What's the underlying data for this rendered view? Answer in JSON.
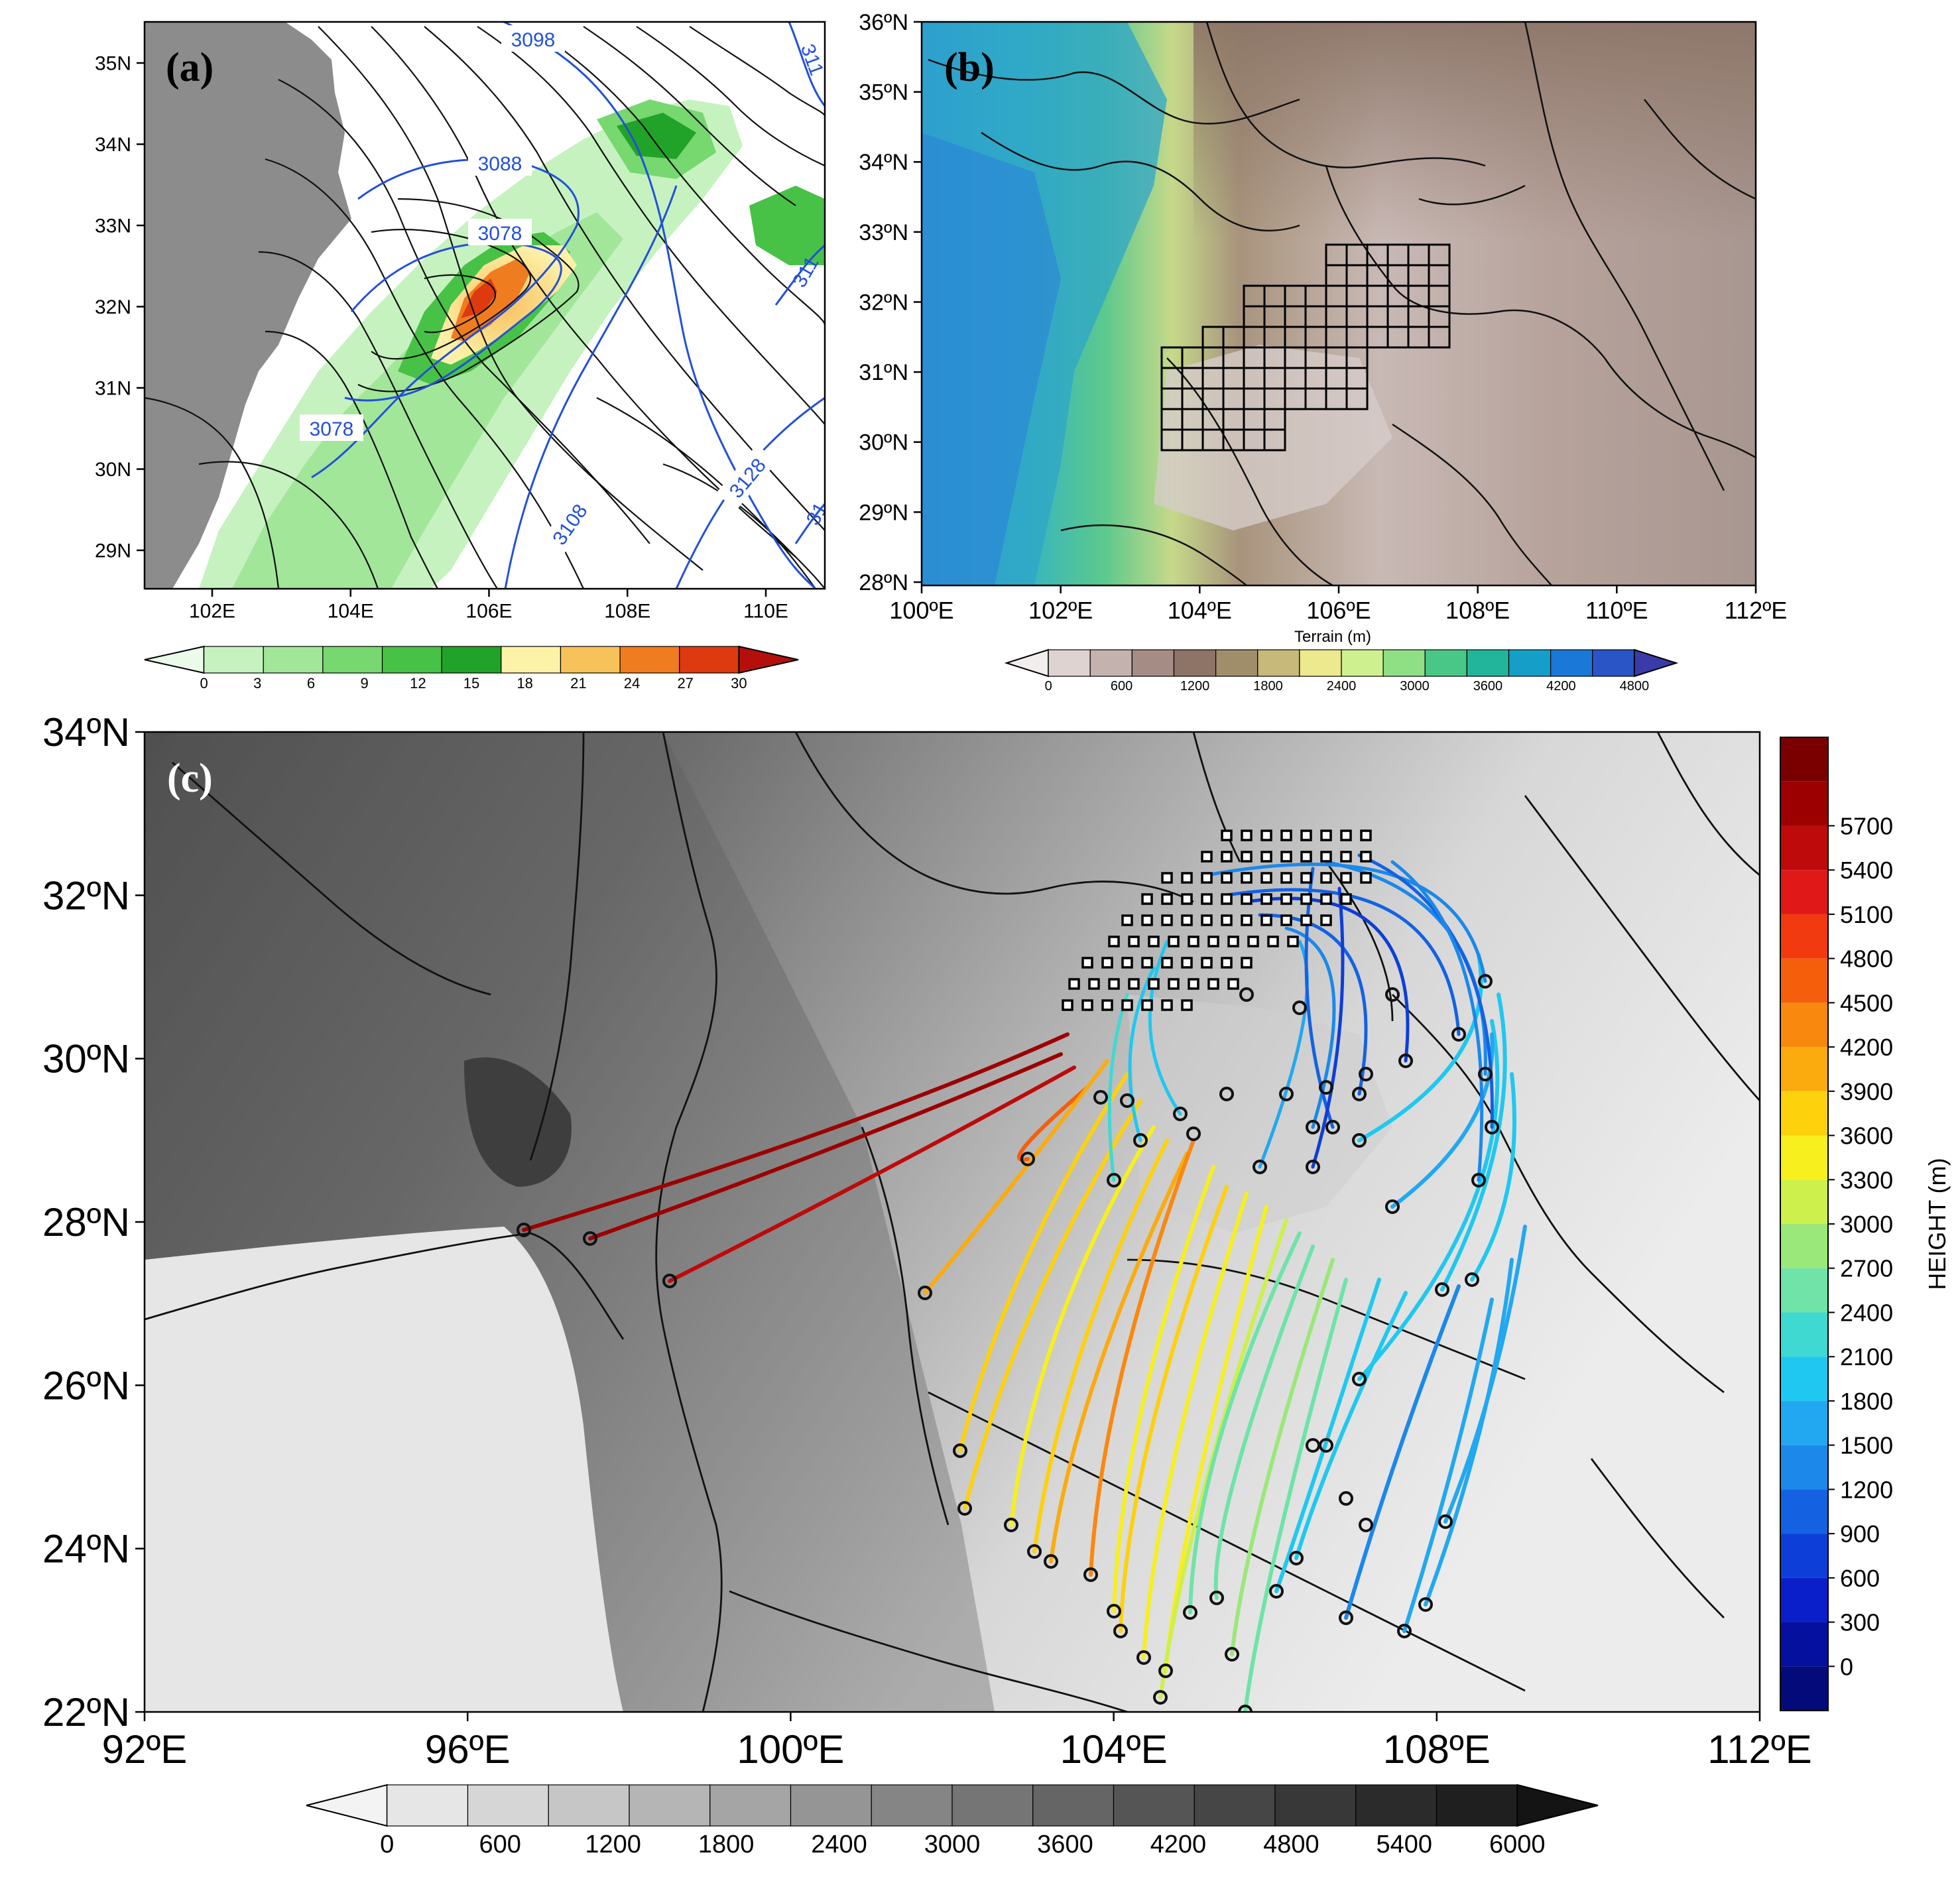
{
  "panel_a": {
    "label": "(a)",
    "lat_ticks": [
      "35N",
      "34N",
      "33N",
      "32N",
      "31N",
      "30N",
      "29N"
    ],
    "lon_ticks": [
      "102E",
      "104E",
      "106E",
      "108E",
      "110E"
    ],
    "contour_labels": [
      "3098",
      "3088",
      "3078",
      "3078",
      "3108",
      "3128",
      "311",
      "311",
      "31"
    ],
    "colorbar_ticks": [
      "0",
      "3",
      "6",
      "9",
      "12",
      "15",
      "18",
      "21",
      "24",
      "27",
      "30"
    ],
    "colorbar_colors": [
      "#eafbea",
      "#c6f2c0",
      "#a2e69a",
      "#76d86f",
      "#48c246",
      "#21a329",
      "#fdf3a8",
      "#f8c25a",
      "#f07c20",
      "#dd3a10",
      "#b50f0c"
    ],
    "contour_color": "#2350d8"
  },
  "panel_b": {
    "label": "(b)",
    "lat_ticks": [
      "36ºN",
      "35ºN",
      "34ºN",
      "33ºN",
      "32ºN",
      "31ºN",
      "30ºN",
      "29ºN",
      "28ºN"
    ],
    "lon_ticks": [
      "100ºE",
      "102ºE",
      "104ºE",
      "106ºE",
      "108ºE",
      "110ºE",
      "112ºE"
    ],
    "colorbar_title": "Terrain (m)",
    "colorbar_ticks": [
      "0",
      "600",
      "1200",
      "1800",
      "2400",
      "3000",
      "3600",
      "4200",
      "4800"
    ],
    "colorbar_colors": [
      "#f3eeee",
      "#ded3d1",
      "#c3b2ad",
      "#a58c84",
      "#8e7466",
      "#a08e6a",
      "#c6b97a",
      "#ece98e",
      "#cff08e",
      "#8fdf85",
      "#48c786",
      "#23b59b",
      "#159fc8",
      "#1a78d8",
      "#2a55c6",
      "#3a3aa8"
    ]
  },
  "panel_c": {
    "label": "(c)",
    "lat_ticks": [
      "34ºN",
      "32ºN",
      "30ºN",
      "28ºN",
      "26ºN",
      "24ºN",
      "22ºN"
    ],
    "lon_ticks": [
      "92ºE",
      "96ºE",
      "100ºE",
      "104ºE",
      "108ºE",
      "112ºE"
    ],
    "height_colorbar_title": "HEIGHT (m)",
    "height_ticks": [
      "5700",
      "5400",
      "5100",
      "4800",
      "4500",
      "4200",
      "3900",
      "3600",
      "3300",
      "3000",
      "2700",
      "2400",
      "2100",
      "1800",
      "1500",
      "1200",
      "900",
      "600",
      "300",
      "0"
    ],
    "height_colors": [
      "#7a0000",
      "#9c0000",
      "#be0a0a",
      "#e01818",
      "#f23a10",
      "#f55f0c",
      "#f9880f",
      "#fbab0d",
      "#fdd10b",
      "#f7ef1e",
      "#cdf04c",
      "#9be87a",
      "#6fe3a8",
      "#3fd9d2",
      "#1fc8f0",
      "#22a8f0",
      "#1b88ea",
      "#1462e2",
      "#0d3ed8",
      "#0a1fc9",
      "#06109e",
      "#050a7a"
    ],
    "terrain_colorbar_ticks": [
      "0",
      "600",
      "1200",
      "1800",
      "2400",
      "3000",
      "3600",
      "4200",
      "4800",
      "5400",
      "6000"
    ],
    "terrain_colors": [
      "#f3f3f3",
      "#e6e6e6",
      "#d6d6d6",
      "#c6c6c6",
      "#b5b5b5",
      "#a5a5a5",
      "#959595",
      "#858585",
      "#757575",
      "#656565",
      "#555555",
      "#464646",
      "#383838",
      "#2b2b2b",
      "#1f1f1f",
      "#141414"
    ]
  }
}
